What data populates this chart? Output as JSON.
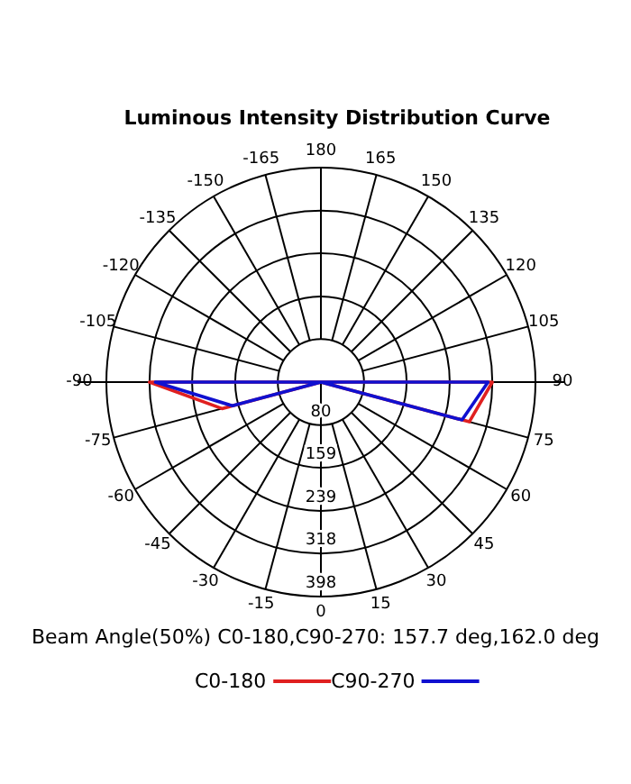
{
  "chart_data": {
    "type": "radar",
    "title": "Luminous Intensity Distribution Curve",
    "categories": [
      "180",
      "165",
      "150",
      "135",
      "120",
      "105",
      "90",
      "75",
      "60",
      "45",
      "30",
      "15",
      "0",
      "-15",
      "-30",
      "-45",
      "-60",
      "-75",
      "-90",
      "-105",
      "-120",
      "-135",
      "-150",
      "-165"
    ],
    "series": [
      {
        "name": "C0-180",
        "color": "#e02020",
        "values": [
          0,
          0,
          0,
          0,
          0,
          0,
          318,
          285,
          0,
          0,
          0,
          0,
          0,
          0,
          0,
          0,
          0,
          190,
          318,
          0,
          0,
          0,
          0,
          0
        ]
      },
      {
        "name": "C90-270",
        "color": "#1010d0",
        "values": [
          0,
          0,
          0,
          0,
          0,
          0,
          310,
          271,
          0,
          0,
          0,
          0,
          0,
          0,
          0,
          0,
          0,
          170,
          307,
          0,
          0,
          0,
          0,
          0
        ]
      }
    ],
    "ylim": [
      0,
      398
    ],
    "yticks": [
      80,
      159,
      239,
      318,
      398
    ],
    "grid": true,
    "legend": "bottom",
    "line_style": "solid",
    "marker": "none",
    "annotations": [
      "Beam Angle(50%) C0-180,C90-270: 157.7 deg,162.0 deg"
    ]
  }
}
